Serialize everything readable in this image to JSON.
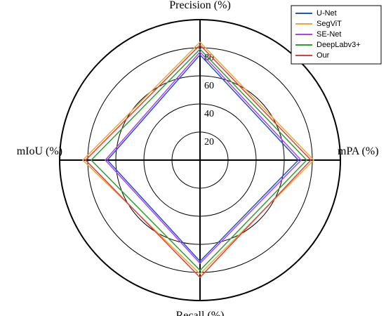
{
  "chart_data": {
    "type": "radar",
    "categories": [
      "Precision (%)",
      "mPA (%)",
      "Recall (%)",
      "mIoU (%)"
    ],
    "rlim": [
      0,
      100
    ],
    "rticks": [
      20,
      40,
      60,
      80
    ],
    "series": [
      {
        "name": "U-Net",
        "color": "#2255c4",
        "values": [
          75,
          70,
          72,
          66
        ]
      },
      {
        "name": "SegViT",
        "color": "#f0a830",
        "values": [
          84,
          81,
          81,
          83.5
        ]
      },
      {
        "name": "SE-Net",
        "color": "#b040ff",
        "values": [
          77,
          72,
          73.5,
          67.5
        ]
      },
      {
        "name": "DeepLabv3+",
        "color": "#2ca02c",
        "values": [
          79,
          76,
          78.5,
          77.5
        ]
      },
      {
        "name": "Our",
        "color": "#e04040",
        "values": [
          82,
          79,
          83.5,
          81.5
        ]
      }
    ]
  }
}
